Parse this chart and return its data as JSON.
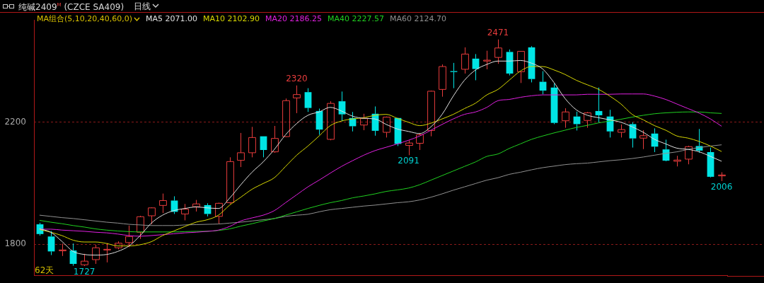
{
  "chart_data": {
    "type": "candlestick",
    "title": "纯碱2409$^{M}$ (CZCE SA409)",
    "subtitle": "日线",
    "legend_title": "MA组合(5,10,20,40,60,0)",
    "legend": "top left",
    "grid": "y",
    "tick_labels": "y",
    "marker": "none",
    "categories": [
      null,
      null,
      null,
      null,
      null,
      null,
      null,
      null,
      null,
      null,
      null,
      null,
      null,
      null,
      null,
      null,
      null,
      null,
      null,
      null,
      null,
      null,
      null,
      null,
      null,
      null,
      null,
      null,
      null,
      null,
      null,
      null,
      null,
      null,
      null,
      null,
      null,
      null,
      null,
      null,
      null,
      null,
      null,
      null,
      null,
      null,
      null,
      null,
      null,
      null,
      null,
      null,
      null,
      null,
      null,
      null,
      null,
      null,
      null,
      null,
      null,
      null
    ],
    "ylim": [
      1695,
      2535
    ],
    "yticks": [
      1800,
      2200
    ],
    "ohlc": [
      [
        1864,
        1869,
        1827,
        1832
      ],
      [
        1824,
        1842,
        1763,
        1775
      ],
      [
        1777,
        1801,
        1760,
        1780
      ],
      [
        1778,
        1801,
        1728,
        1734
      ],
      [
        1731,
        1767,
        1727,
        1743
      ],
      [
        1748,
        1797,
        1734,
        1787
      ],
      [
        1780,
        1802,
        1739,
        1782
      ],
      [
        1787,
        1808,
        1782,
        1802
      ],
      [
        1804,
        1860,
        1789,
        1824
      ],
      [
        1838,
        1892,
        1816,
        1889
      ],
      [
        1892,
        1920,
        1864,
        1918
      ],
      [
        1926,
        1965,
        1901,
        1942
      ],
      [
        1942,
        1956,
        1898,
        1905
      ],
      [
        1898,
        1931,
        1877,
        1914
      ],
      [
        1922,
        1944,
        1906,
        1931
      ],
      [
        1927,
        1933,
        1890,
        1898
      ],
      [
        1890,
        1935,
        1866,
        1933
      ],
      [
        1935,
        2084,
        1931,
        2070
      ],
      [
        2074,
        2164,
        2052,
        2099
      ],
      [
        2099,
        2184,
        2084,
        2149
      ],
      [
        2153,
        2153,
        2084,
        2108
      ],
      [
        2102,
        2187,
        2099,
        2146
      ],
      [
        2152,
        2277,
        2151,
        2270
      ],
      [
        2279,
        2320,
        2229,
        2290
      ],
      [
        2298,
        2311,
        2233,
        2246
      ],
      [
        2236,
        2244,
        2158,
        2175
      ],
      [
        2143,
        2268,
        2140,
        2261
      ],
      [
        2268,
        2300,
        2203,
        2225
      ],
      [
        2213,
        2233,
        2169,
        2186
      ],
      [
        2190,
        2227,
        2173,
        2212
      ],
      [
        2227,
        2251,
        2155,
        2171
      ],
      [
        2166,
        2218,
        2149,
        2216
      ],
      [
        2213,
        2214,
        2121,
        2128
      ],
      [
        2123,
        2140,
        2091,
        2131
      ],
      [
        2130,
        2164,
        2108,
        2158
      ],
      [
        2172,
        2303,
        2153,
        2301
      ],
      [
        2307,
        2389,
        2283,
        2382
      ],
      [
        2367,
        2394,
        2311,
        2364
      ],
      [
        2373,
        2445,
        2359,
        2423
      ],
      [
        2408,
        2423,
        2337,
        2374
      ],
      [
        2400,
        2434,
        2373,
        2403
      ],
      [
        2412,
        2471,
        2391,
        2443
      ],
      [
        2430,
        2438,
        2353,
        2359
      ],
      [
        2365,
        2432,
        2328,
        2432
      ],
      [
        2445,
        2449,
        2330,
        2341
      ],
      [
        2332,
        2367,
        2291,
        2303
      ],
      [
        2313,
        2326,
        2193,
        2197
      ],
      [
        2204,
        2245,
        2181,
        2233
      ],
      [
        2218,
        2234,
        2172,
        2193
      ],
      [
        2205,
        2233,
        2181,
        2230
      ],
      [
        2236,
        2313,
        2199,
        2222
      ],
      [
        2218,
        2240,
        2149,
        2169
      ],
      [
        2166,
        2192,
        2149,
        2175
      ],
      [
        2193,
        2199,
        2116,
        2146
      ],
      [
        2147,
        2173,
        2111,
        2155
      ],
      [
        2162,
        2179,
        2101,
        2119
      ],
      [
        2110,
        2142,
        2071,
        2073
      ],
      [
        2071,
        2089,
        2054,
        2075
      ],
      [
        2078,
        2122,
        2061,
        2119
      ],
      [
        2121,
        2177,
        2099,
        2106
      ],
      [
        2101,
        2116,
        2018,
        2020
      ],
      [
        2023,
        2035,
        2006,
        2026
      ]
    ],
    "colors": [
      "#00e5e5",
      "#00e5e5",
      "#e83c3c",
      "#00e5e5",
      "#e83c3c",
      "#e83c3c",
      "#e83c3c",
      "#e83c3c",
      "#e83c3c",
      "#e83c3c",
      "#e83c3c",
      "#e83c3c",
      "#00e5e5",
      "#e83c3c",
      "#e83c3c",
      "#00e5e5",
      "#e83c3c",
      "#e83c3c",
      "#e83c3c",
      "#e83c3c",
      "#00e5e5",
      "#e83c3c",
      "#e83c3c",
      "#e83c3c",
      "#00e5e5",
      "#00e5e5",
      "#e83c3c",
      "#00e5e5",
      "#00e5e5",
      "#e83c3c",
      "#00e5e5",
      "#e83c3c",
      "#00e5e5",
      "#e83c3c",
      "#e83c3c",
      "#e83c3c",
      "#e83c3c",
      "#00e5e5",
      "#e83c3c",
      "#00e5e5",
      "#e83c3c",
      "#e83c3c",
      "#00e5e5",
      "#e83c3c",
      "#00e5e5",
      "#00e5e5",
      "#00e5e5",
      "#e83c3c",
      "#00e5e5",
      "#e83c3c",
      "#00e5e5",
      "#00e5e5",
      "#e83c3c",
      "#00e5e5",
      "#e83c3c",
      "#00e5e5",
      "#00e5e5",
      "#e83c3c",
      "#e83c3c",
      "#00e5e5",
      "#00e5e5",
      "#e83c3c"
    ],
    "series": [
      {
        "type": "line",
        "name": "MA5 2071.00",
        "color": "#e0e0e0",
        "values": [
          1849,
          1838,
          1808,
          1775,
          1765,
          1763,
          1765,
          1775,
          1793,
          1827,
          1868,
          1894,
          1909,
          1916,
          1921,
          1918,
          1916,
          1950,
          1994,
          2035,
          2069,
          2110,
          2158,
          2195,
          2222,
          2233,
          2248,
          2236,
          2219,
          2212,
          2210,
          2192,
          2177,
          2169,
          2162,
          2184,
          2225,
          2285,
          2337,
          2371,
          2389,
          2400,
          2400,
          2402,
          2393,
          2374,
          2330,
          2277,
          2240,
          2222,
          2214,
          2207,
          2199,
          2184,
          2166,
          2143,
          2128,
          2114,
          2110,
          2102,
          2087,
          2071
        ]
      },
      {
        "type": "line",
        "name": "MA10 2102.90",
        "color": "#d8d800",
        "values": [
          1847,
          1838,
          1827,
          1812,
          1806,
          1806,
          1801,
          1793,
          1793,
          1797,
          1807,
          1827,
          1842,
          1857,
          1871,
          1879,
          1894,
          1927,
          1953,
          1979,
          1998,
          2017,
          2054,
          2091,
          2121,
          2154,
          2188,
          2203,
          2210,
          2214,
          2222,
          2225,
          2212,
          2199,
          2188,
          2196,
          2210,
          2225,
          2244,
          2262,
          2289,
          2307,
          2337,
          2367,
          2382,
          2382,
          2371,
          2356,
          2337,
          2322,
          2307,
          2285,
          2259,
          2225,
          2207,
          2188,
          2173,
          2154,
          2147,
          2136,
          2121,
          2103
        ]
      },
      {
        "type": "line",
        "name": "MA20 2186.25",
        "color": "#e020e0",
        "values": [
          1848,
          1848,
          1845,
          1843,
          1841,
          1838,
          1836,
          1832,
          1827,
          1825,
          1827,
          1830,
          1833,
          1836,
          1838,
          1841,
          1845,
          1857,
          1875,
          1885,
          1894,
          1909,
          1935,
          1961,
          1987,
          2009,
          2032,
          2054,
          2073,
          2091,
          2106,
          2117,
          2128,
          2140,
          2154,
          2173,
          2192,
          2210,
          2225,
          2233,
          2248,
          2270,
          2274,
          2281,
          2286,
          2289,
          2289,
          2289,
          2289,
          2291,
          2291,
          2291,
          2292,
          2292,
          2292,
          2285,
          2274,
          2259,
          2244,
          2229,
          2210,
          2186
        ]
      },
      {
        "type": "line",
        "name": "MA40 2227.57",
        "color": "#20d020",
        "values": [
          1877,
          1871,
          1866,
          1860,
          1855,
          1849,
          1845,
          1842,
          1840,
          1839,
          1839,
          1839,
          1839,
          1840,
          1841,
          1841,
          1844,
          1849,
          1858,
          1866,
          1875,
          1883,
          1894,
          1905,
          1916,
          1926,
          1935,
          1942,
          1951,
          1957,
          1964,
          1972,
          1977,
          1983,
          1994,
          2009,
          2024,
          2039,
          2054,
          2069,
          2087,
          2095,
          2113,
          2128,
          2143,
          2154,
          2164,
          2173,
          2182,
          2189,
          2197,
          2203,
          2209,
          2216,
          2222,
          2227,
          2230,
          2232,
          2233,
          2233,
          2230,
          2228
        ]
      },
      {
        "type": "line",
        "name": "MA60 2124.70",
        "color": "#909090",
        "values": [
          1894,
          1890,
          1886,
          1883,
          1879,
          1875,
          1871,
          1868,
          1864,
          1862,
          1860,
          1860,
          1860,
          1862,
          1863,
          1864,
          1865,
          1868,
          1871,
          1875,
          1879,
          1883,
          1890,
          1894,
          1897,
          1905,
          1912,
          1916,
          1920,
          1924,
          1927,
          1931,
          1935,
          1938,
          1944,
          1953,
          1964,
          1976,
          1987,
          1998,
          2009,
          2017,
          2028,
          2035,
          2043,
          2050,
          2055,
          2060,
          2063,
          2065,
          2069,
          2073,
          2076,
          2080,
          2085,
          2091,
          2097,
          2102,
          2110,
          2116,
          2121,
          2125
        ]
      }
    ],
    "annotations": [
      "62天",
      {
        "text": "2320",
        "y": 2320
      },
      {
        "text": "2471",
        "y": 2471
      },
      {
        "text": "2091",
        "y": 2091
      },
      {
        "text": "1727",
        "y": 1727
      },
      {
        "text": "2006",
        "y": 2006
      }
    ]
  }
}
